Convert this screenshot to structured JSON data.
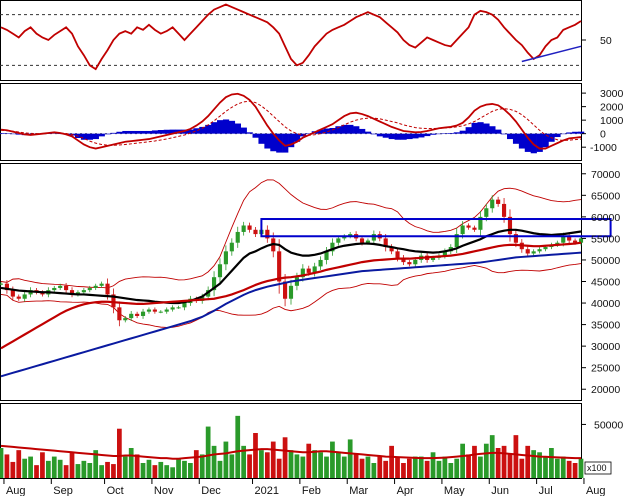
{
  "chart_data": [
    {
      "type": "line",
      "panel": "rsi",
      "y_ticks": [
        50
      ],
      "dashed_levels": [
        30,
        70
      ],
      "ylim": [
        20,
        80
      ],
      "series": [
        {
          "color": "#c00000",
          "values": [
            60,
            58,
            55,
            52,
            57,
            60,
            55,
            52,
            50,
            54,
            57,
            60,
            55,
            45,
            38,
            30,
            27,
            35,
            42,
            50,
            55,
            57,
            55,
            60,
            58,
            62,
            58,
            55,
            57,
            60,
            55,
            50,
            55,
            60,
            65,
            70,
            74,
            76,
            78,
            76,
            74,
            72,
            70,
            68,
            66,
            64,
            60,
            55,
            45,
            35,
            30,
            32,
            38,
            45,
            50,
            55,
            58,
            60,
            62,
            65,
            68,
            70,
            72,
            70,
            68,
            64,
            60,
            56,
            50,
            46,
            44,
            48,
            52,
            50,
            48,
            46,
            45,
            50,
            55,
            60,
            70,
            73,
            72,
            70,
            66,
            60,
            55,
            50,
            46,
            40,
            35,
            38,
            45,
            50,
            52,
            58,
            60,
            62,
            65
          ]
        }
      ],
      "trendline": {
        "color": "#2020c0",
        "points": [
          [
            88,
            33
          ],
          [
            98,
            45
          ]
        ]
      }
    },
    {
      "type": "line",
      "panel": "macd",
      "y_ticks": [
        3000,
        2000,
        1000,
        0,
        -1000
      ],
      "ylim": [
        -1800,
        3600
      ],
      "series": [
        {
          "color": "#c00000",
          "style": "solid",
          "values": [
            300,
            250,
            150,
            50,
            -50,
            -100,
            -50,
            0,
            50,
            100,
            50,
            -50,
            -200,
            -500,
            -800,
            -1000,
            -1100,
            -1000,
            -900,
            -800,
            -700,
            -600,
            -550,
            -500,
            -450,
            -400,
            -300,
            -200,
            -100,
            0,
            100,
            200,
            350,
            600,
            900,
            1300,
            1800,
            2300,
            2700,
            2900,
            2950,
            2800,
            2500,
            2000,
            1300,
            600,
            0,
            -500,
            -900,
            -800,
            -600,
            -300,
            -100,
            100,
            300,
            500,
            700,
            1000,
            1300,
            1500,
            1550,
            1450,
            1300,
            1100,
            900,
            700,
            500,
            350,
            200,
            150,
            100,
            120,
            200,
            300,
            400,
            450,
            500,
            600,
            800,
            1200,
            1700,
            2000,
            2150,
            2200,
            2100,
            1800,
            1400,
            900,
            300,
            -300,
            -800,
            -1100,
            -1100,
            -900,
            -700,
            -500,
            -350,
            -300,
            -250
          ]
        },
        {
          "color": "#c00000",
          "style": "dashed",
          "values": [
            250,
            220,
            180,
            120,
            60,
            20,
            0,
            10,
            30,
            50,
            40,
            10,
            -60,
            -180,
            -350,
            -550,
            -700,
            -800,
            -850,
            -860,
            -840,
            -800,
            -750,
            -700,
            -650,
            -600,
            -540,
            -470,
            -390,
            -300,
            -200,
            -100,
            50,
            200,
            400,
            650,
            950,
            1300,
            1650,
            1950,
            2200,
            2350,
            2400,
            2300,
            2050,
            1700,
            1300,
            900,
            500,
            200,
            0,
            -100,
            -120,
            -80,
            0,
            120,
            280,
            450,
            650,
            850,
            1000,
            1100,
            1150,
            1150,
            1100,
            1000,
            900,
            800,
            650,
            550,
            450,
            400,
            380,
            380,
            400,
            420,
            450,
            500,
            580,
            720,
            900,
            1150,
            1400,
            1650,
            1800,
            1850,
            1800,
            1650,
            1400,
            1050,
            650,
            250,
            -100,
            -300,
            -450,
            -500,
            -480,
            -440,
            -400
          ]
        }
      ],
      "histogram": {
        "color": "#0000cc",
        "values": [
          50,
          30,
          -30,
          -70,
          -110,
          -120,
          -50,
          -10,
          20,
          50,
          10,
          -60,
          -140,
          -320,
          -450,
          -450,
          -400,
          -200,
          -50,
          60,
          140,
          200,
          200,
          200,
          200,
          200,
          240,
          270,
          290,
          300,
          300,
          300,
          300,
          400,
          500,
          650,
          850,
          1000,
          1050,
          950,
          750,
          450,
          100,
          -300,
          -750,
          -1100,
          -1300,
          -1400,
          -1400,
          -1000,
          -600,
          -200,
          20,
          180,
          300,
          380,
          420,
          550,
          650,
          650,
          550,
          350,
          150,
          -50,
          -200,
          -300,
          -400,
          -450,
          -450,
          -400,
          -350,
          -280,
          -180,
          -80,
          0,
          30,
          50,
          100,
          220,
          480,
          800,
          850,
          750,
          550,
          300,
          -50,
          -400,
          -750,
          -1100,
          -1350,
          -1450,
          -1350,
          -1000,
          -600,
          -250,
          -20,
          90,
          140,
          150
        ]
      }
    },
    {
      "type": "candlestick",
      "panel": "price",
      "y_ticks": [
        70000,
        65000,
        60000,
        55000,
        50000,
        45000,
        40000,
        35000,
        30000,
        25000,
        20000
      ],
      "ylim": [
        17500,
        72500
      ],
      "x_labels": [
        "Aug",
        "Sep",
        "Oct",
        "Nov",
        "Dec",
        "2021",
        "Feb",
        "Mar",
        "Apr",
        "May",
        "Jun",
        "Jul",
        "Aug"
      ],
      "x_label_index": [
        2,
        10,
        19,
        27,
        35,
        44,
        52,
        60,
        68,
        76,
        84,
        92,
        100
      ],
      "close": [
        44500,
        43000,
        41500,
        41000,
        42000,
        43000,
        42500,
        42000,
        43000,
        43500,
        44000,
        43000,
        42000,
        42500,
        43000,
        43500,
        44000,
        44500,
        42000,
        39000,
        36000,
        36500,
        37500,
        37000,
        38000,
        38500,
        38000,
        38000,
        38500,
        39000,
        39000,
        40000,
        41000,
        40500,
        41500,
        43000,
        46000,
        49000,
        52000,
        54000,
        56500,
        58000,
        57000,
        56000,
        57000,
        55000,
        52000,
        45000,
        41000,
        44000,
        46000,
        48000,
        47000,
        48500,
        50000,
        52000,
        54000,
        55000,
        55500,
        56000,
        55000,
        54000,
        54500,
        56000,
        55000,
        53000,
        52000,
        50500,
        49500,
        49000,
        50000,
        51000,
        50000,
        50500,
        51000,
        52000,
        53000,
        56000,
        58000,
        57500,
        57000,
        60000,
        62000,
        64000,
        63000,
        60000,
        56000,
        54000,
        52500,
        51500,
        52000,
        52500,
        53000,
        53500,
        54000,
        55500,
        54500,
        54000,
        55000
      ],
      "series": [
        {
          "name": "",
          "color": "#000000",
          "values": [
            43500,
            43300,
            43100,
            42900,
            42800,
            42700,
            42600,
            42500,
            42500,
            42400,
            42300,
            42200,
            42100,
            42000,
            42000,
            41900,
            41800,
            41700,
            41600,
            41500,
            41300,
            41100,
            40900,
            40700,
            40600,
            40500,
            40300,
            40200,
            40100,
            40000,
            40000,
            40200,
            40500,
            41000,
            41500,
            42500,
            43500,
            44500,
            46000,
            47500,
            49000,
            50500,
            51500,
            52000,
            52700,
            53300,
            53700,
            53500,
            52500,
            51700,
            51300,
            51000,
            51000,
            51200,
            51500,
            52000,
            52500,
            53000,
            53300,
            53500,
            53700,
            53800,
            53800,
            53700,
            53500,
            53200,
            53000,
            52700,
            52500,
            52200,
            52000,
            51900,
            51800,
            51700,
            51800,
            52000,
            52300,
            52700,
            53300,
            53800,
            54300,
            54800,
            55500,
            56000,
            56500,
            56800,
            57000,
            57000,
            56800,
            56500,
            56200,
            56000,
            55900,
            55800,
            55900,
            56000,
            56200,
            56400,
            56600
          ]
        },
        {
          "name": "",
          "color": "#c00000",
          "values": [
            29500,
            30300,
            31100,
            31900,
            32700,
            33500,
            34300,
            35100,
            35900,
            36700,
            37500,
            38200,
            38800,
            39300,
            39700,
            40000,
            40200,
            40300,
            40300,
            40200,
            40100,
            40000,
            39900,
            39800,
            39800,
            39900,
            40000,
            40100,
            40200,
            40300,
            40400,
            40500,
            40600,
            40700,
            40800,
            40900,
            41000,
            41300,
            41600,
            42000,
            42500,
            43000,
            43600,
            44200,
            44700,
            45100,
            45400,
            45700,
            45900,
            46000,
            46200,
            46400,
            46700,
            47000,
            47300,
            47700,
            48000,
            48300,
            48600,
            48900,
            49200,
            49500,
            49700,
            49900,
            50000,
            50100,
            50200,
            50300,
            50300,
            50300,
            50400,
            50500,
            50600,
            50700,
            50800,
            50900,
            51000,
            51200,
            51400,
            51700,
            52000,
            52300,
            52600,
            52900,
            53200,
            53400,
            53500,
            53500,
            53400,
            53300,
            53200,
            53200,
            53300,
            53400,
            53500,
            53600,
            53700,
            53800,
            54000
          ]
        },
        {
          "name": "",
          "color": "#0a1aa0",
          "values": [
            23000,
            23400,
            23800,
            24200,
            24600,
            25000,
            25400,
            25800,
            26200,
            26600,
            27000,
            27400,
            27800,
            28200,
            28600,
            29000,
            29400,
            29800,
            30200,
            30600,
            31000,
            31400,
            31800,
            32200,
            32600,
            33000,
            33400,
            33800,
            34200,
            34600,
            35000,
            35400,
            35800,
            36300,
            36800,
            37500,
            38200,
            39000,
            39800,
            40500,
            41200,
            41900,
            42500,
            43000,
            43400,
            43800,
            44100,
            44400,
            44700,
            45000,
            45200,
            45400,
            45600,
            45800,
            46000,
            46200,
            46400,
            46600,
            46800,
            47000,
            47200,
            47400,
            47500,
            47600,
            47700,
            47800,
            47900,
            48000,
            48100,
            48200,
            48300,
            48400,
            48500,
            48600,
            48700,
            48800,
            48900,
            49000,
            49100,
            49200,
            49300,
            49400,
            49600,
            49800,
            50000,
            50200,
            50400,
            50600,
            50700,
            50800,
            50900,
            51000,
            51100,
            51200,
            51300,
            51400,
            51500,
            51600,
            51700
          ]
        }
      ],
      "boxes": [
        {
          "color": "#0000cc",
          "x": [
            44,
            103
          ],
          "y": [
            55500,
            59500
          ]
        }
      ]
    },
    {
      "type": "bar",
      "panel": "volume",
      "unit": "x100",
      "y_ticks": [
        50000
      ],
      "ylim": [
        0,
        70000
      ],
      "values": [
        28000,
        22000,
        15000,
        26000,
        18000,
        20000,
        12000,
        24000,
        16000,
        20000,
        17000,
        12000,
        24000,
        13000,
        16000,
        14000,
        26000,
        12000,
        15000,
        13000,
        46000,
        20000,
        28000,
        22000,
        14000,
        17000,
        12000,
        15000,
        12000,
        10000,
        18000,
        16000,
        14000,
        26000,
        22000,
        48000,
        30000,
        16000,
        34000,
        22000,
        58000,
        30000,
        22000,
        42000,
        26000,
        24000,
        34000,
        18000,
        38000,
        26000,
        22000,
        20000,
        32000,
        26000,
        24000,
        20000,
        34000,
        24000,
        20000,
        36000,
        22000,
        18000,
        20000,
        14000,
        20000,
        16000,
        30000,
        20000,
        14000,
        18000,
        20000,
        20000,
        16000,
        24000,
        16000,
        20000,
        14000,
        18000,
        32000,
        22000,
        30000,
        20000,
        32000,
        40000,
        28000,
        30000,
        22000,
        40000,
        18000,
        30000,
        26000,
        24000,
        20000,
        28000,
        18000,
        20000,
        16000,
        14000,
        18000
      ],
      "ma": {
        "color": "#c00000",
        "values": [
          30000,
          29500,
          29000,
          28500,
          28000,
          27500,
          27000,
          26500,
          26000,
          25500,
          25000,
          24500,
          24000,
          23500,
          23000,
          22500,
          22000,
          21500,
          21000,
          20500,
          20500,
          21000,
          21000,
          20500,
          20000,
          19500,
          19000,
          18500,
          18500,
          18000,
          18000,
          18500,
          19000,
          19500,
          20000,
          21000,
          22000,
          22500,
          23000,
          24000,
          25000,
          25500,
          26000,
          26500,
          27000,
          27000,
          26500,
          26000,
          25500,
          25000,
          24500,
          24000,
          24000,
          24500,
          25000,
          25000,
          24500,
          24000,
          23500,
          23000,
          22500,
          22000,
          21500,
          21000,
          20500,
          20000,
          19800,
          19500,
          19200,
          19000,
          18800,
          18500,
          18500,
          18500,
          18800,
          19000,
          19500,
          20000,
          20500,
          21000,
          22000,
          22500,
          23000,
          23500,
          23500,
          23000,
          22500,
          22000,
          21500,
          21000,
          20500,
          20000,
          19800,
          19500,
          19200,
          19000,
          18800,
          18500,
          18500
        ]
      }
    }
  ]
}
